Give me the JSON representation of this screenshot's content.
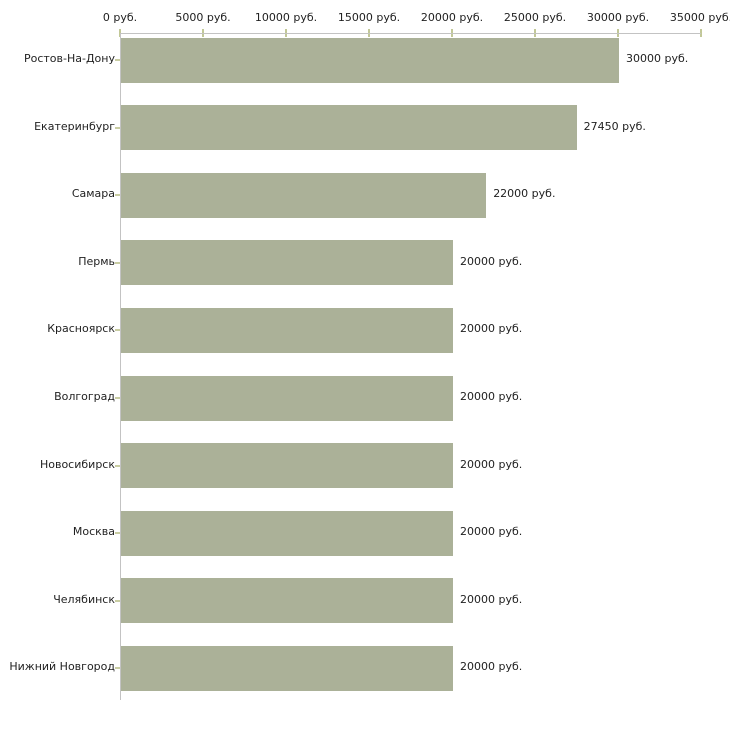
{
  "chart_data": {
    "type": "bar",
    "orientation": "horizontal",
    "title": "",
    "xlabel": "",
    "ylabel": "",
    "unit_suffix": " руб.",
    "categories": [
      "Ростов-На-Дону",
      "Екатеринбург",
      "Самара",
      "Пермь",
      "Красноярск",
      "Волгоград",
      "Новосибирск",
      "Москва",
      "Челябинск",
      "Нижний Новгород"
    ],
    "values": [
      30000,
      27450,
      22000,
      20000,
      20000,
      20000,
      20000,
      20000,
      20000,
      20000
    ],
    "bar_labels": [
      "30000 руб.",
      "27450 руб.",
      "22000 руб.",
      "20000 руб.",
      "20000 руб.",
      "20000 руб.",
      "20000 руб.",
      "20000 руб.",
      "20000 руб.",
      "20000 руб."
    ],
    "x_axis": {
      "position": "top",
      "ticks": [
        0,
        5000,
        10000,
        15000,
        20000,
        25000,
        30000,
        35000
      ],
      "tick_labels": [
        "0 руб.",
        "5000 руб.",
        "10000 руб.",
        "15000 руб.",
        "20000 руб.",
        "25000 руб.",
        "30000 руб.",
        "35000 руб."
      ]
    },
    "xlim": [
      0,
      35000
    ],
    "grid": false,
    "legend": false,
    "colors": {
      "bar": "#abb198",
      "axis_line": "#c3c3c3",
      "x_tick": "#c2c897",
      "y_tick": "#c9cda2",
      "text": "#1f1f1f",
      "background": "#ffffff"
    }
  }
}
